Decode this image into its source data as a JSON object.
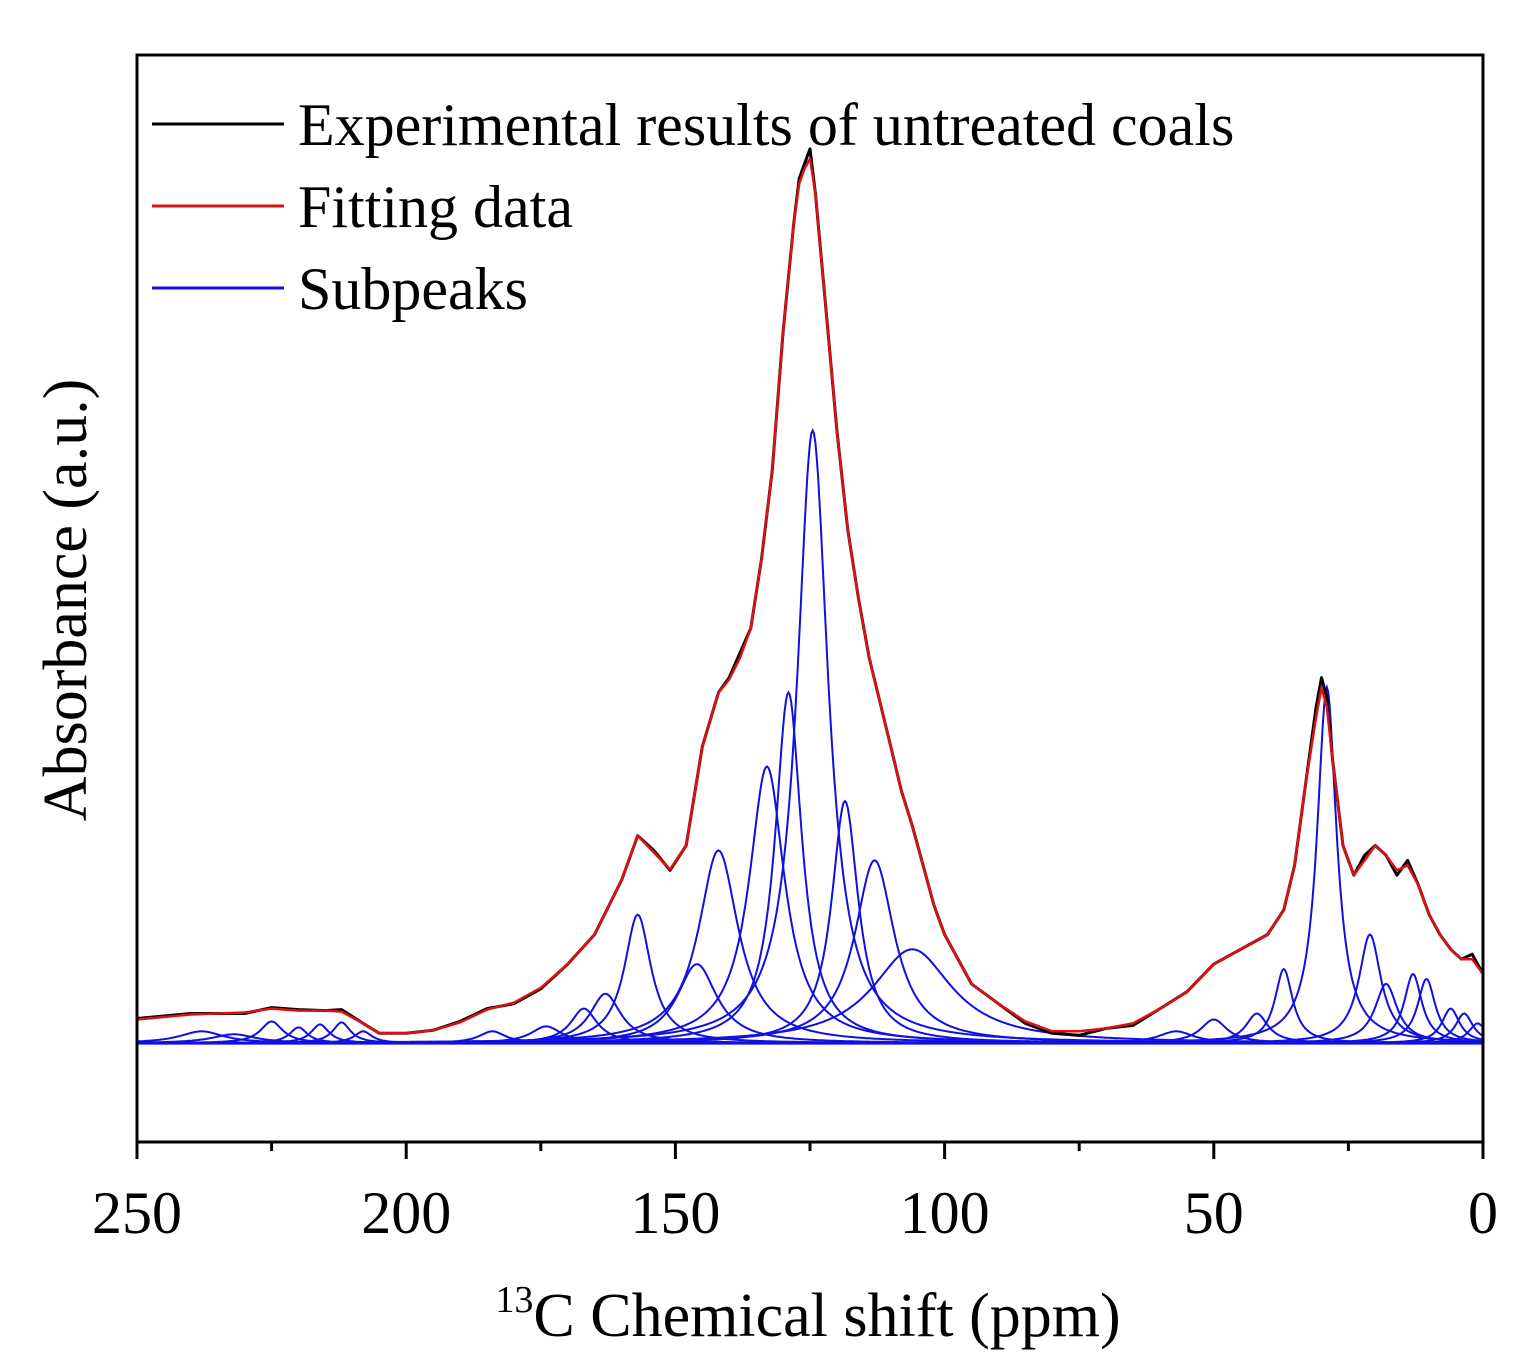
{
  "chart_data": {
    "type": "line",
    "xlabel_superscript": "13",
    "xlabel": "C Chemical shift (ppm)",
    "ylabel": "Absorbance (a.u.)",
    "xlim": [
      250,
      0
    ],
    "x_reversed": true,
    "ylim": [
      -0.1,
      1.0
    ],
    "baseline": 0,
    "x_ticks_major": [
      250,
      200,
      150,
      100,
      50,
      0
    ],
    "x_tick_labels": [
      "250",
      "200",
      "150",
      "100",
      "50",
      "0"
    ],
    "x_ticks_minor": [
      225,
      175,
      125,
      75,
      25
    ],
    "y_ticks_visible": false,
    "grid": false,
    "legend": {
      "placement": "top-left",
      "entries": [
        {
          "label": "Experimental results of untreated coals",
          "color": "#000000"
        },
        {
          "label": "Fitting data",
          "color": "#e01010"
        },
        {
          "label": "Subpeaks",
          "color": "#1010e0"
        }
      ]
    },
    "series": [
      {
        "name": "Experimental results of untreated coals",
        "color": "#000000",
        "x": [
          250,
          240,
          230,
          225,
          220,
          215,
          212,
          208,
          205,
          200,
          195,
          190,
          185,
          180,
          175,
          170,
          165,
          160,
          157,
          154,
          151,
          148,
          145,
          142,
          140,
          138,
          136,
          134,
          132,
          130,
          128,
          127,
          126,
          125,
          124,
          122,
          120,
          118,
          116,
          114,
          112,
          110,
          108,
          106,
          104,
          102,
          100,
          95,
          90,
          85,
          80,
          75,
          70,
          65,
          60,
          55,
          50,
          45,
          40,
          37,
          35,
          33,
          31,
          30,
          29,
          28,
          26,
          24,
          22,
          20,
          18,
          16,
          14,
          12,
          10,
          8,
          6,
          4,
          2,
          0
        ],
        "y": [
          0.025,
          0.03,
          0.03,
          0.036,
          0.034,
          0.033,
          0.034,
          0.02,
          0.01,
          0.01,
          0.013,
          0.022,
          0.035,
          0.04,
          0.055,
          0.08,
          0.11,
          0.165,
          0.21,
          0.195,
          0.175,
          0.2,
          0.3,
          0.355,
          0.37,
          0.395,
          0.42,
          0.49,
          0.58,
          0.72,
          0.83,
          0.875,
          0.89,
          0.905,
          0.86,
          0.74,
          0.62,
          0.52,
          0.45,
          0.39,
          0.345,
          0.3,
          0.255,
          0.22,
          0.18,
          0.14,
          0.11,
          0.06,
          0.04,
          0.02,
          0.01,
          0.008,
          0.015,
          0.018,
          0.035,
          0.052,
          0.08,
          0.095,
          0.11,
          0.135,
          0.18,
          0.26,
          0.34,
          0.37,
          0.35,
          0.29,
          0.2,
          0.17,
          0.19,
          0.2,
          0.19,
          0.17,
          0.185,
          0.16,
          0.13,
          0.11,
          0.095,
          0.085,
          0.09,
          0.07
        ]
      },
      {
        "name": "Fitting data",
        "color": "#e01010",
        "x": [
          250,
          240,
          230,
          225,
          220,
          215,
          212,
          208,
          205,
          200,
          195,
          190,
          185,
          180,
          175,
          170,
          165,
          160,
          157,
          154,
          151,
          148,
          145,
          142,
          140,
          138,
          136,
          134,
          132,
          130,
          128,
          127,
          126,
          125,
          124,
          122,
          120,
          118,
          116,
          114,
          112,
          110,
          108,
          106,
          104,
          102,
          100,
          95,
          90,
          85,
          80,
          75,
          70,
          65,
          60,
          55,
          50,
          45,
          40,
          37,
          35,
          33,
          31,
          30,
          29,
          28,
          26,
          24,
          22,
          20,
          18,
          16,
          14,
          12,
          10,
          8,
          6,
          4,
          2,
          0
        ],
        "y": [
          0.024,
          0.029,
          0.031,
          0.035,
          0.033,
          0.033,
          0.032,
          0.02,
          0.01,
          0.01,
          0.013,
          0.021,
          0.034,
          0.041,
          0.056,
          0.08,
          0.11,
          0.165,
          0.21,
          0.193,
          0.176,
          0.2,
          0.3,
          0.355,
          0.368,
          0.39,
          0.42,
          0.49,
          0.58,
          0.72,
          0.83,
          0.87,
          0.885,
          0.895,
          0.86,
          0.74,
          0.62,
          0.52,
          0.45,
          0.39,
          0.345,
          0.3,
          0.255,
          0.22,
          0.18,
          0.14,
          0.11,
          0.06,
          0.04,
          0.022,
          0.012,
          0.012,
          0.015,
          0.02,
          0.035,
          0.052,
          0.08,
          0.095,
          0.11,
          0.135,
          0.18,
          0.26,
          0.33,
          0.36,
          0.34,
          0.29,
          0.2,
          0.17,
          0.185,
          0.2,
          0.19,
          0.175,
          0.18,
          0.16,
          0.13,
          0.11,
          0.095,
          0.085,
          0.085,
          0.07
        ]
      }
    ],
    "subpeaks": [
      {
        "center": 238,
        "height": 0.012,
        "width": 5
      },
      {
        "center": 232,
        "height": 0.009,
        "width": 5
      },
      {
        "center": 225,
        "height": 0.022,
        "width": 2.5
      },
      {
        "center": 220,
        "height": 0.016,
        "width": 2
      },
      {
        "center": 216,
        "height": 0.019,
        "width": 2
      },
      {
        "center": 212,
        "height": 0.021,
        "width": 2
      },
      {
        "center": 208,
        "height": 0.012,
        "width": 2
      },
      {
        "center": 184,
        "height": 0.012,
        "width": 3
      },
      {
        "center": 174,
        "height": 0.017,
        "width": 3.5
      },
      {
        "center": 167,
        "height": 0.035,
        "width": 3
      },
      {
        "center": 163,
        "height": 0.05,
        "width": 3.5
      },
      {
        "center": 157,
        "height": 0.13,
        "width": 3
      },
      {
        "center": 146,
        "height": 0.08,
        "width": 4.5
      },
      {
        "center": 142,
        "height": 0.195,
        "width": 4.5
      },
      {
        "center": 133,
        "height": 0.28,
        "width": 4
      },
      {
        "center": 129,
        "height": 0.355,
        "width": 3
      },
      {
        "center": 124.5,
        "height": 0.62,
        "width": 3.5
      },
      {
        "center": 118.5,
        "height": 0.245,
        "width": 3
      },
      {
        "center": 113,
        "height": 0.185,
        "width": 4.5
      },
      {
        "center": 106,
        "height": 0.095,
        "width": 9
      },
      {
        "center": 57,
        "height": 0.012,
        "width": 4
      },
      {
        "center": 50,
        "height": 0.024,
        "width": 3
      },
      {
        "center": 42,
        "height": 0.03,
        "width": 2.5
      },
      {
        "center": 37,
        "height": 0.075,
        "width": 2
      },
      {
        "center": 29,
        "height": 0.36,
        "width": 2.2
      },
      {
        "center": 21,
        "height": 0.11,
        "width": 2.5
      },
      {
        "center": 18,
        "height": 0.06,
        "width": 2.5
      },
      {
        "center": 13,
        "height": 0.07,
        "width": 2
      },
      {
        "center": 10.5,
        "height": 0.065,
        "width": 2
      },
      {
        "center": 6,
        "height": 0.035,
        "width": 2
      },
      {
        "center": 3.5,
        "height": 0.03,
        "width": 2
      },
      {
        "center": 1,
        "height": 0.02,
        "width": 2
      }
    ]
  }
}
